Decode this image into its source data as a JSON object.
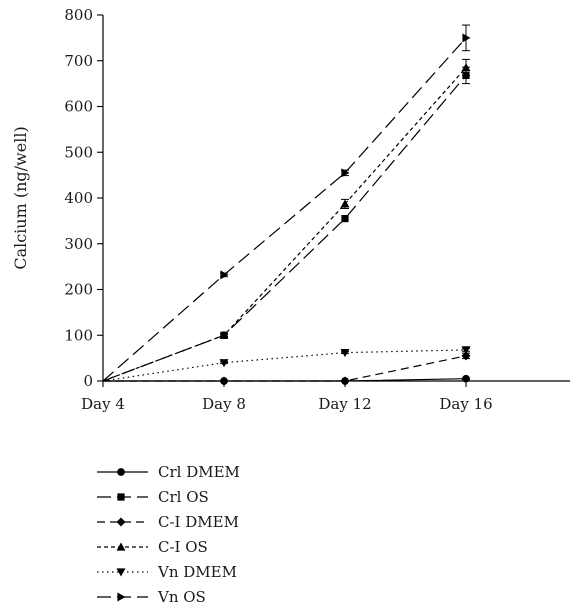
{
  "chart_data": {
    "type": "line",
    "title": "",
    "xlabel": "",
    "ylabel": "Calcium (ng/well)",
    "categories": [
      "Day 4",
      "Day 8",
      "Day 12",
      "Day 16"
    ],
    "ylim": [
      0,
      800
    ],
    "yticks": [
      0,
      100,
      200,
      300,
      400,
      500,
      600,
      700,
      800
    ],
    "grid": false,
    "legend_position": "bottom",
    "series": [
      {
        "name": "Crl DMEM",
        "values": [
          0,
          0,
          0,
          5
        ],
        "errors": [
          0,
          0,
          0,
          2
        ],
        "marker": "circle",
        "dash": "solid",
        "color": "#000000"
      },
      {
        "name": "Crl OS",
        "values": [
          0,
          100,
          355,
          668
        ],
        "errors": [
          0,
          3,
          0,
          18
        ],
        "marker": "square",
        "dash": "long-dash",
        "color": "#000000"
      },
      {
        "name": "C-I DMEM",
        "values": [
          0,
          0,
          0,
          55
        ],
        "errors": [
          0,
          0,
          0,
          6
        ],
        "marker": "diamond",
        "dash": "dash",
        "color": "#000000"
      },
      {
        "name": "C-I OS",
        "values": [
          0,
          100,
          387,
          685
        ],
        "errors": [
          0,
          3,
          10,
          18
        ],
        "marker": "triangle-up",
        "dash": "short-dash",
        "color": "#000000"
      },
      {
        "name": "Vn DMEM",
        "values": [
          0,
          40,
          62,
          68
        ],
        "errors": [
          0,
          2,
          2,
          3
        ],
        "marker": "triangle-down",
        "dash": "dot",
        "color": "#000000"
      },
      {
        "name": "Vn OS",
        "values": [
          0,
          232,
          455,
          750
        ],
        "errors": [
          0,
          4,
          6,
          28
        ],
        "marker": "triangle-right",
        "dash": "long-dash",
        "color": "#000000"
      }
    ]
  }
}
